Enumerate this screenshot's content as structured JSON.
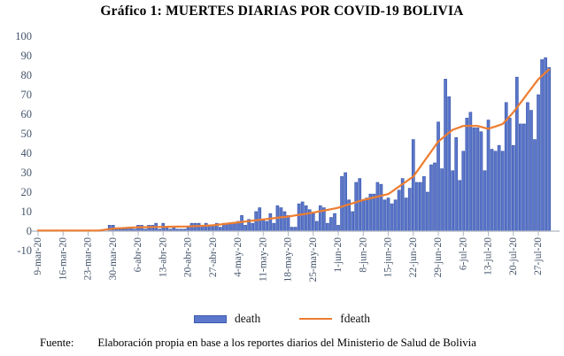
{
  "title": "Gráfico 1: MUERTES DIARIAS POR COVID-19 BOLIVIA",
  "legend": {
    "death_label": "death",
    "fdeath_label": "fdeath"
  },
  "source": {
    "label": "Fuente:",
    "text": "Elaboración propia en base a los reportes diarios del Ministerio de Salud de Bolivia"
  },
  "colors": {
    "bar_fill": "#5C77CB",
    "bar_border": "#3D5BAE",
    "line": "#ED7D31",
    "axis_text": "#44546A",
    "axis_line": "#AEB4BF",
    "tick_mark": "#AEB4BF"
  },
  "chart_data": {
    "type": "bar",
    "title": "Gráfico 1: MUERTES DIARIAS POR COVID-19 BOLIVIA",
    "xlabel": "",
    "ylabel": "",
    "ylim": [
      -10,
      100
    ],
    "grid": false,
    "legend_position": "bottom",
    "start_date": "9-mar-20",
    "end_date": "30-jul-20",
    "x_tick_labels": [
      "9-mar-20",
      "16-mar-20",
      "23-mar-20",
      "30-mar-20",
      "6-abr-20",
      "13-abr-20",
      "20-abr-20",
      "27-abr-20",
      "4-may-20",
      "11-may-20",
      "18-may-20",
      "25-may-20",
      "1-jun-20",
      "8-jun-20",
      "15-jun-20",
      "22-jun-20",
      "29-jun-20",
      "6-jul-20",
      "13-jul-20",
      "20-jul-20",
      "27-jul-20"
    ],
    "y_ticks": [
      100,
      90,
      80,
      70,
      60,
      50,
      40,
      30,
      20,
      10,
      0,
      -10
    ],
    "series": [
      {
        "name": "death",
        "type": "bar",
        "note": "daily deaths, one value per day from 9-mar-20 to 30-jul-20",
        "values": [
          0,
          0,
          0,
          0,
          0,
          0,
          0,
          0,
          0,
          0,
          0,
          0,
          0,
          0,
          0,
          0,
          0,
          0,
          0,
          0,
          3,
          3,
          1,
          1,
          1,
          2,
          2,
          1,
          3,
          3,
          1,
          3,
          3,
          4,
          1,
          4,
          2,
          1,
          2,
          1,
          1,
          1,
          2,
          4,
          4,
          4,
          3,
          4,
          3,
          3,
          4,
          2,
          4,
          4,
          4,
          4,
          5,
          8,
          3,
          6,
          4,
          10,
          12,
          6,
          5,
          9,
          4,
          13,
          12,
          10,
          8,
          2,
          2,
          14,
          15,
          13,
          11,
          9,
          5,
          13,
          12,
          4,
          7,
          9,
          3,
          28,
          30,
          16,
          10,
          25,
          27,
          16,
          17,
          19,
          19,
          25,
          24,
          16,
          17,
          14,
          16,
          21,
          27,
          17,
          22,
          47,
          25,
          25,
          28,
          20,
          34,
          35,
          56,
          32,
          78,
          69,
          31,
          48,
          26,
          41,
          58,
          61,
          53,
          53,
          51,
          31,
          57,
          42,
          41,
          44,
          41,
          66,
          58,
          44,
          79,
          55,
          55,
          66,
          62,
          47,
          70,
          88,
          89,
          84
        ]
      },
      {
        "name": "fdeath",
        "type": "line",
        "note": "smoothed trend, control points [day_index, value], day 0 = 9-mar-20",
        "points_day_value": [
          [
            0,
            0.3
          ],
          [
            17,
            0.3
          ],
          [
            21,
            1.3
          ],
          [
            28,
            2.0
          ],
          [
            35,
            2.2
          ],
          [
            42,
            2.4
          ],
          [
            49,
            3.0
          ],
          [
            56,
            4.5
          ],
          [
            63,
            6.0
          ],
          [
            70,
            7.5
          ],
          [
            77,
            9.5
          ],
          [
            84,
            12.0
          ],
          [
            91,
            16.0
          ],
          [
            98,
            19.0
          ],
          [
            105,
            28.0
          ],
          [
            112,
            46.0
          ],
          [
            116,
            52.0
          ],
          [
            119,
            54.0
          ],
          [
            123,
            54.0
          ],
          [
            126,
            52.5
          ],
          [
            130,
            55.0
          ],
          [
            133,
            61.0
          ],
          [
            140,
            78.0
          ],
          [
            143,
            83.0
          ]
        ]
      }
    ]
  }
}
